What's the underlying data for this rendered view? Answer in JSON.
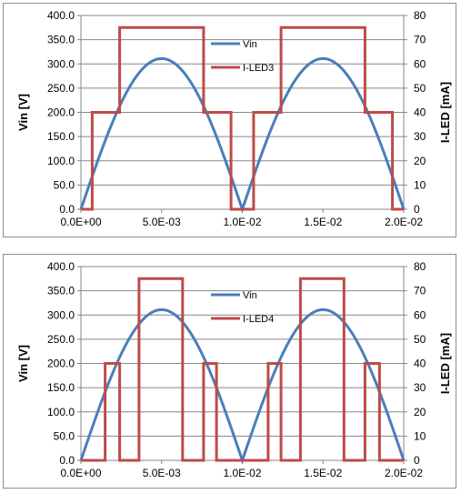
{
  "chart_data": [
    {
      "type": "line",
      "xlabel": "",
      "ylabel": "Vin [V]",
      "y2label": "I-LED [mA]",
      "xlim": [
        0,
        0.02
      ],
      "ylim": [
        0,
        400
      ],
      "y2lim": [
        0,
        80
      ],
      "x_ticks": [
        "0.0E+00",
        "5.0E-03",
        "1.0E-02",
        "1.5E-02",
        "2.0E-02"
      ],
      "y_ticks": [
        "0.0",
        "50.0",
        "100.0",
        "150.0",
        "200.0",
        "250.0",
        "300.0",
        "350.0",
        "400.0"
      ],
      "y2_ticks": [
        "0",
        "10",
        "20",
        "30",
        "40",
        "50",
        "60",
        "70",
        "80"
      ],
      "grid": "horizontal",
      "legend_position": "top-right",
      "series": [
        {
          "name": "Vin",
          "axis": "left",
          "color": "#4a7ebb",
          "function": "abs_sine",
          "amplitude": 311,
          "period": 0.02
        },
        {
          "name": "I-LED3",
          "axis": "right",
          "color": "#be4b48",
          "step_x": [
            0,
            0.0007,
            0.0007,
            0.0024,
            0.0024,
            0.0076,
            0.0076,
            0.0093,
            0.0093,
            0.0107,
            0.0107,
            0.0124,
            0.0124,
            0.0176,
            0.0176,
            0.0193,
            0.0193,
            0.02
          ],
          "step_y": [
            0,
            0,
            40,
            40,
            75,
            75,
            40,
            40,
            0,
            0,
            40,
            40,
            75,
            75,
            40,
            40,
            0,
            0
          ]
        }
      ]
    },
    {
      "type": "line",
      "xlabel": "",
      "ylabel": "Vin [V]",
      "y2label": "I-LED [mA]",
      "xlim": [
        0,
        0.02
      ],
      "ylim": [
        0,
        400
      ],
      "y2lim": [
        0,
        80
      ],
      "x_ticks": [
        "0.0E+00",
        "5.0E-03",
        "1.0E-02",
        "1.5E-02",
        "2.0E-02"
      ],
      "y_ticks": [
        "0.0",
        "50.0",
        "100.0",
        "150.0",
        "200.0",
        "250.0",
        "300.0",
        "350.0",
        "400.0"
      ],
      "y2_ticks": [
        "0",
        "10",
        "20",
        "30",
        "40",
        "50",
        "60",
        "70",
        "80"
      ],
      "grid": "horizontal",
      "legend_position": "top-right",
      "series": [
        {
          "name": "Vin",
          "axis": "left",
          "color": "#4a7ebb",
          "function": "abs_sine",
          "amplitude": 311,
          "period": 0.02
        },
        {
          "name": "I-LED4",
          "axis": "right",
          "color": "#be4b48",
          "step_x": [
            0,
            0.0015,
            0.0015,
            0.0024,
            0.0024,
            0.0036,
            0.0036,
            0.0063,
            0.0063,
            0.0076,
            0.0076,
            0.0084,
            0.0084,
            0.0116,
            0.0116,
            0.0124,
            0.0124,
            0.0136,
            0.0136,
            0.0163,
            0.0163,
            0.0176,
            0.0176,
            0.0185,
            0.0185,
            0.02
          ],
          "step_y": [
            0,
            0,
            40,
            40,
            0,
            0,
            75,
            75,
            0,
            0,
            40,
            40,
            0,
            0,
            40,
            40,
            0,
            0,
            75,
            75,
            0,
            0,
            40,
            40,
            0,
            0
          ]
        }
      ]
    }
  ]
}
